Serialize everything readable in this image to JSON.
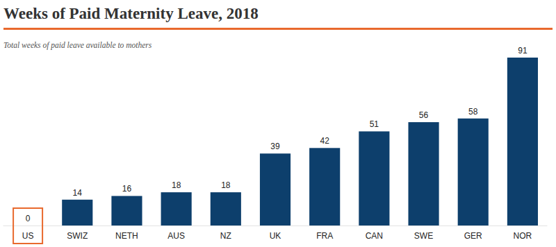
{
  "chart_data": {
    "type": "bar",
    "title": "Weeks of Paid Maternity Leave, 2018",
    "subtitle": "Total weeks of paid leave available to mothers",
    "categories": [
      "US",
      "SWIZ",
      "NETH",
      "AUS",
      "NZ",
      "UK",
      "FRA",
      "CAN",
      "SWE",
      "GER",
      "NOR"
    ],
    "values": [
      0,
      14,
      16,
      18,
      18,
      39,
      42,
      51,
      56,
      58,
      91
    ],
    "color": "#0d3f6c",
    "colors": [
      "#e8692d",
      "#0d3f6c",
      "#0d3f6c",
      "#0d3f6c",
      "#0d3f6c",
      "#0d3f6c",
      "#0d3f6c",
      "#0d3f6c",
      "#0d3f6c",
      "#0d3f6c",
      "#0d3f6c"
    ],
    "ylim": [
      0,
      91
    ],
    "data_labels": true,
    "tick_labels": "x",
    "grid": false
  }
}
